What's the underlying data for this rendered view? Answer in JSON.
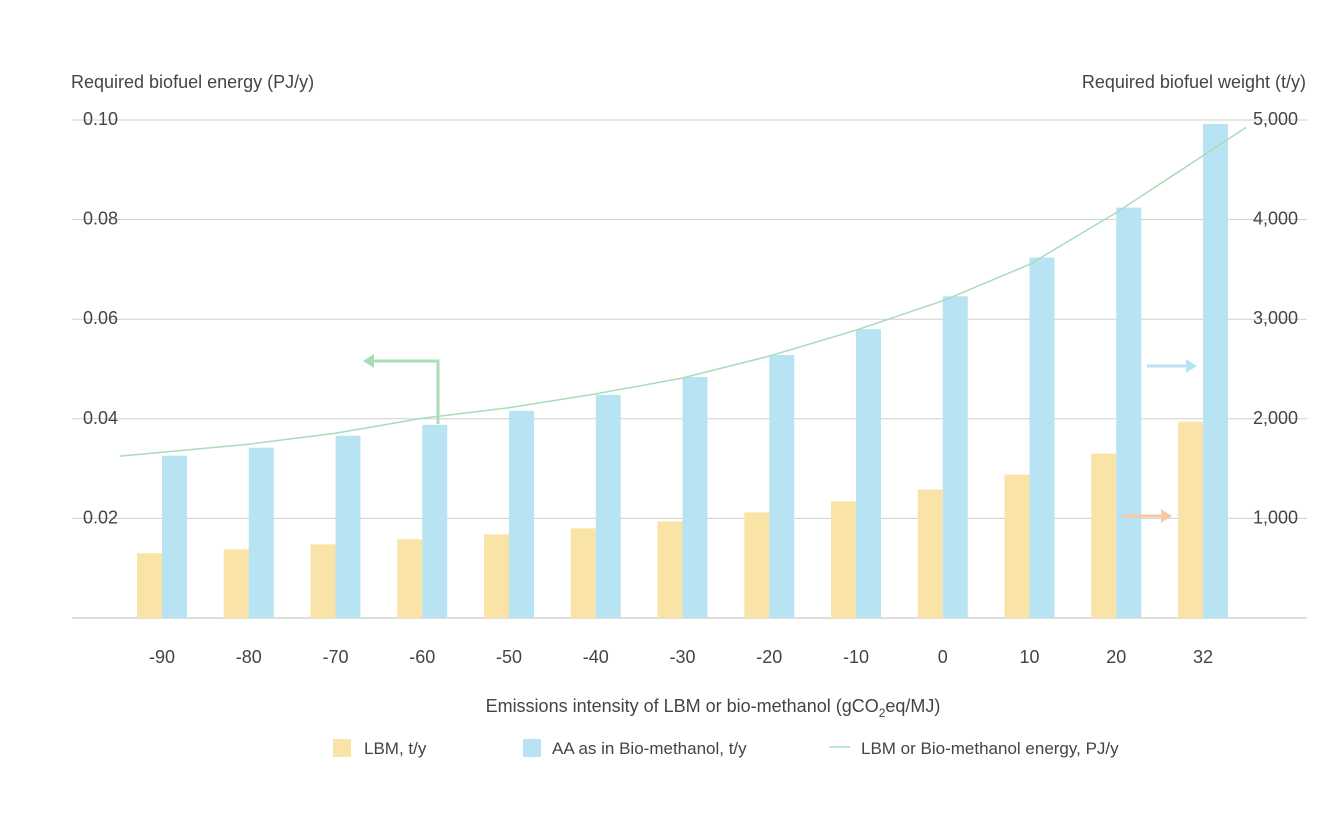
{
  "chart_data": {
    "type": "bar",
    "title": "",
    "xlabel": "Emissions intensity of LBM or bio-methanol (gCO",
    "xlabel_sub": "2",
    "xlabel_end": "eq/MJ)",
    "ylabel_left": "Required biofuel energy (PJ/y)",
    "ylabel_right": "Required biofuel weight (t/y)",
    "categories": [
      "-90",
      "-80",
      "-70",
      "-60",
      "-50",
      "-40",
      "-30",
      "-20",
      "-10",
      "0",
      "10",
      "20",
      "32"
    ],
    "left_axis": {
      "ylim": [
        0,
        0.1
      ],
      "ticks": [
        "0.02",
        "0.04",
        "0.06",
        "0.08",
        "0.10"
      ],
      "tick_values": [
        0.02,
        0.04,
        0.06,
        0.08,
        0.1
      ]
    },
    "right_axis": {
      "ylim": [
        0,
        5000
      ],
      "ticks": [
        "1,000",
        "2,000",
        "3,000",
        "4,000",
        "5,000"
      ],
      "tick_values": [
        1000,
        2000,
        3000,
        4000,
        5000
      ]
    },
    "grid": true,
    "legend_position": "bottom",
    "series": [
      {
        "name": "LBM, t/y",
        "type": "bar",
        "axis": "right",
        "color": "#fae3a7",
        "values": [
          650,
          690,
          740,
          790,
          840,
          900,
          970,
          1060,
          1170,
          1290,
          1440,
          1650,
          1970
        ]
      },
      {
        "name": "AA as in Bio-methanol, t/y",
        "type": "bar",
        "axis": "right",
        "color": "#b8e3f2",
        "values": [
          1630,
          1710,
          1830,
          1940,
          2080,
          2240,
          2420,
          2640,
          2900,
          3230,
          3620,
          4120,
          4960
        ]
      },
      {
        "name": "LBM or Bio-methanol energy, PJ/y",
        "type": "line",
        "axis": "left",
        "color": "#a8ddb8",
        "values": [
          0.0325,
          0.0349,
          0.0371,
          0.0401,
          0.0422,
          0.045,
          0.0482,
          0.0526,
          0.0578,
          0.0637,
          0.071,
          0.0814,
          0.0985
        ]
      }
    ]
  }
}
